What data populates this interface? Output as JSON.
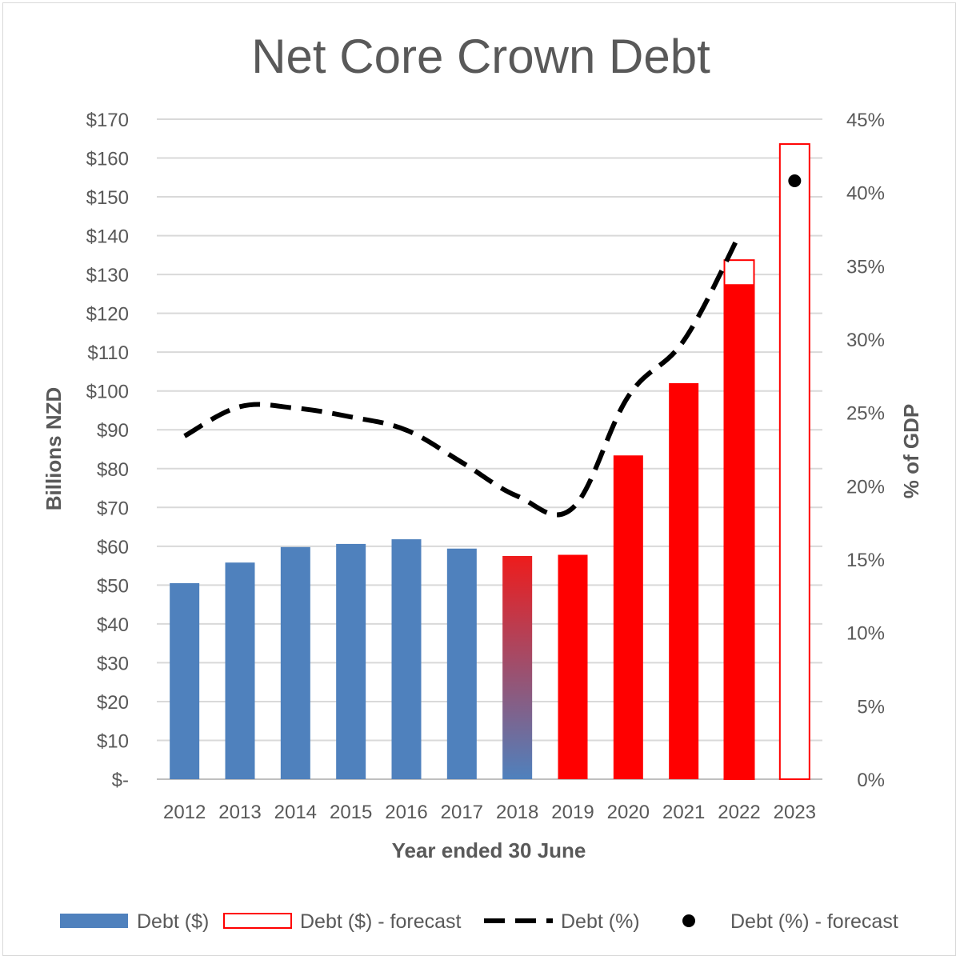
{
  "chart_data": {
    "type": "bar",
    "title": "Net Core Crown Debt",
    "xlabel": "Year ended 30 June",
    "ylabel": "Billions NZD",
    "y2label": "% of GDP",
    "categories": [
      "2012",
      "2013",
      "2014",
      "2015",
      "2016",
      "2017",
      "2018",
      "2019",
      "2020",
      "2021",
      "2022",
      "2023"
    ],
    "ylim": [
      0,
      170
    ],
    "y2lim": [
      0,
      45
    ],
    "y_ticks": [
      0,
      10,
      20,
      30,
      40,
      50,
      60,
      70,
      80,
      90,
      100,
      110,
      120,
      130,
      140,
      150,
      160,
      170
    ],
    "y_tick_labels": [
      "$-",
      "$10",
      "$20",
      "$30",
      "$40",
      "$50",
      "$60",
      "$70",
      "$80",
      "$90",
      "$100",
      "$110",
      "$120",
      "$130",
      "$140",
      "$150",
      "$160",
      "$170"
    ],
    "y2_ticks": [
      0,
      5,
      10,
      15,
      20,
      25,
      30,
      35,
      40,
      45
    ],
    "y2_tick_labels": [
      "0%",
      "5%",
      "10%",
      "15%",
      "20%",
      "25%",
      "30%",
      "35%",
      "40%",
      "45%"
    ],
    "grid": true,
    "legend_position": "bottom",
    "series": [
      {
        "name": "Debt ($)",
        "kind": "bar",
        "color": "#4f81bd",
        "values": [
          50.5,
          55.8,
          59.8,
          60.6,
          61.8,
          59.4,
          57.5,
          57.8,
          83.4,
          102.0,
          127.5,
          null
        ]
      },
      {
        "name": "Debt ($) - forecast",
        "kind": "bar-outline",
        "color": "#ff0000",
        "values": [
          null,
          null,
          null,
          null,
          null,
          null,
          null,
          null,
          null,
          null,
          133.7,
          163.6
        ]
      },
      {
        "name": "Debt (%)",
        "kind": "dashed-line",
        "axis": "secondary",
        "color": "#000000",
        "values": [
          23.4,
          25.4,
          25.3,
          24.7,
          23.8,
          21.6,
          19.3,
          18.5,
          26.1,
          29.9,
          37.1,
          null
        ]
      },
      {
        "name": "Debt (%) - forecast",
        "kind": "marker",
        "axis": "secondary",
        "color": "#000000",
        "values": [
          null,
          null,
          null,
          null,
          null,
          null,
          null,
          null,
          null,
          null,
          null,
          40.8
        ]
      }
    ],
    "bar_colors": [
      "#4f81bd",
      "#4f81bd",
      "#4f81bd",
      "#4f81bd",
      "#4f81bd",
      "#4f81bd",
      "gradient:#ee1c1c-#4f81bd",
      "#ff0000",
      "#ff0000",
      "#ff0000",
      "#ff0000",
      ""
    ]
  }
}
